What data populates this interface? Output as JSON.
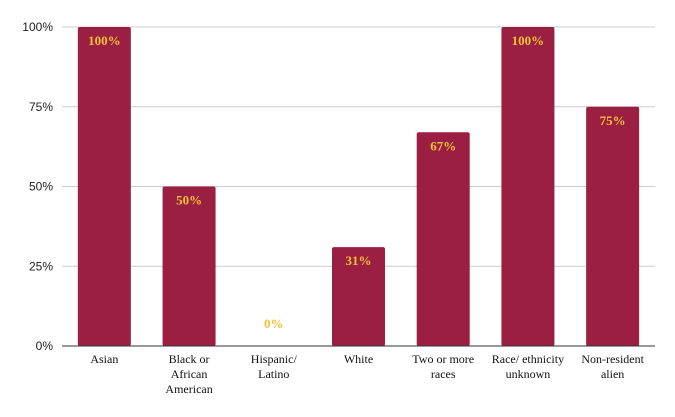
{
  "chart_data": {
    "type": "bar",
    "categories": [
      [
        "Asian"
      ],
      [
        "Black or",
        "African",
        "American"
      ],
      [
        "Hispanic/",
        "Latino"
      ],
      [
        "White"
      ],
      [
        "Two or more",
        "races"
      ],
      [
        "Race/ ethnicity",
        "unknown"
      ],
      [
        "Non-resident",
        "alien"
      ]
    ],
    "values": [
      100,
      50,
      0,
      31,
      67,
      100,
      75
    ],
    "data_labels": [
      "100%",
      "50%",
      "0%",
      "31%",
      "67%",
      "100%",
      "75%"
    ],
    "y_ticks": [
      {
        "value": 0,
        "label": "0%"
      },
      {
        "value": 25,
        "label": "25%"
      },
      {
        "value": 50,
        "label": "50%"
      },
      {
        "value": 75,
        "label": "75%"
      },
      {
        "value": 100,
        "label": "100%"
      }
    ],
    "ylim": [
      0,
      100
    ],
    "grid": true,
    "legend": "none",
    "colors": {
      "bar": "#9b1f42",
      "label": "#f3c233"
    }
  }
}
